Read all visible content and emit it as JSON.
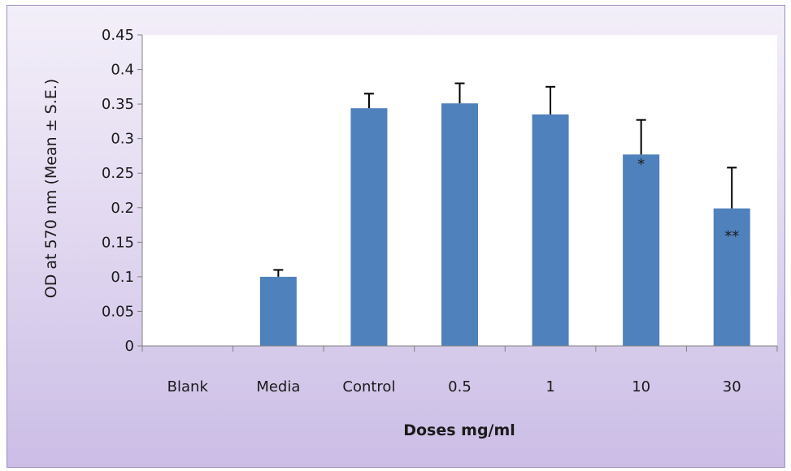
{
  "chart_data": {
    "type": "bar",
    "title": "",
    "xlabel": "Doses mg/ml",
    "ylabel": "OD at 570 nm (Mean ± S.E.)",
    "categories": [
      "Blank",
      "Media",
      "Control",
      "0.5",
      "1",
      "10",
      "30"
    ],
    "values": [
      0,
      0.1,
      0.344,
      0.351,
      0.335,
      0.277,
      0.199
    ],
    "errors": [
      0,
      0.01,
      0.021,
      0.029,
      0.04,
      0.05,
      0.059
    ],
    "significance": [
      "",
      "",
      "",
      "",
      "",
      "*",
      "**"
    ],
    "ylim": [
      0,
      0.45
    ],
    "yticks": [
      "0",
      "0.05",
      "0.1",
      "0.15",
      "0.2",
      "0.25",
      "0.3",
      "0.35",
      "0.4",
      "0.45"
    ],
    "grid": false,
    "legend": "none",
    "bar_color": "#4f81bd",
    "plot_background": "#ffffff",
    "frame_gradient": [
      "#f3eff9",
      "#cbbde6"
    ]
  }
}
